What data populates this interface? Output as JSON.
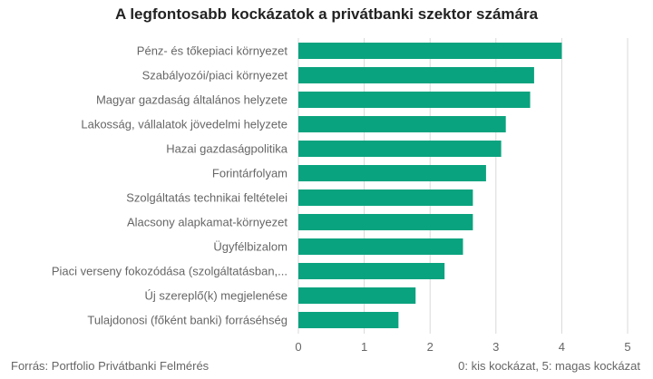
{
  "chart_data": {
    "type": "bar",
    "orientation": "horizontal",
    "title": "A legfontosabb kockázatok a privátbanki szektor számára",
    "categories": [
      "Pénz- és tőkepiaci környezet",
      "Szabályozói/piaci környezet",
      "Magyar gazdaság általános helyzete",
      "Lakosság, vállalatok jövedelmi helyzete",
      "Hazai gazdaságpolitika",
      "Forintárfolyam",
      "Szolgáltatás technikai feltételei",
      "Alacsony alapkamat-környezet",
      "Ügyfélbizalom",
      "Piaci verseny fokozódása (szolgáltatásban,...",
      "Új szereplő(k) megjelenése",
      "Tulajdonosi (főként banki) forráséhség"
    ],
    "values": [
      4.0,
      3.58,
      3.52,
      3.15,
      3.08,
      2.85,
      2.65,
      2.65,
      2.5,
      2.22,
      1.78,
      1.52
    ],
    "xlim": [
      0,
      5
    ],
    "xticks": [
      "0",
      "1",
      "2",
      "3",
      "4",
      "5"
    ],
    "grid": true,
    "bar_color": "#0aa37f",
    "source": "Forrás: Portfolio Privátbanki Felmérés",
    "scale_note": "0: kis kockázat, 5: magas kockázat"
  }
}
